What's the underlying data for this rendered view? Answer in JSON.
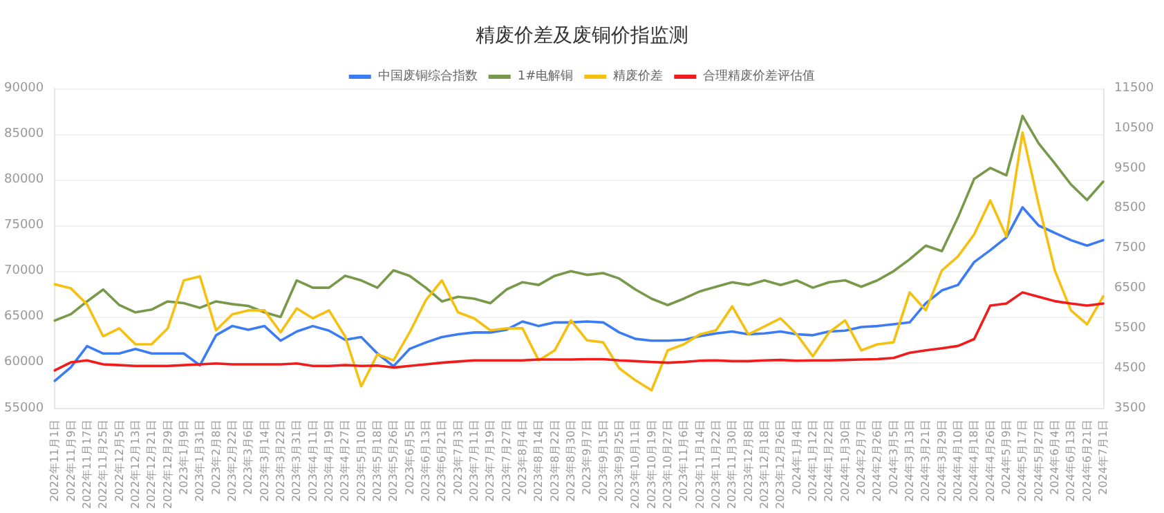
{
  "chart_data": {
    "type": "line",
    "title": "精废价差及废铜价指监测",
    "categories": [
      "2022年11月1日",
      "2022年11月9日",
      "2022年11月17日",
      "2022年11月25日",
      "2022年12月5日",
      "2022年12月13日",
      "2022年12月21日",
      "2022年12月29日",
      "2023年1月9日",
      "2023年1月31日",
      "2023年2月8日",
      "2023年2月22日",
      "2023年3月6日",
      "2023年3月14日",
      "2023年3月22日",
      "2023年3月31日",
      "2023年4月11日",
      "2023年4月19日",
      "2023年4月27日",
      "2023年5月10日",
      "2023年5月18日",
      "2023年5月26日",
      "2023年6月5日",
      "2023年6月13日",
      "2023年6月21日",
      "2023年7月3日",
      "2023年7月11日",
      "2023年7月19日",
      "2023年7月27日",
      "2023年8月4日",
      "2023年8月14日",
      "2023年8月22日",
      "2023年8月30日",
      "2023年9月7日",
      "2023年9月15日",
      "2023年9月25日",
      "2023年10月11日",
      "2023年10月19日",
      "2023年10月27日",
      "2023年11月6日",
      "2023年11月14日",
      "2023年11月22日",
      "2023年11月30日",
      "2023年12月8日",
      "2023年12月18日",
      "2023年12月26日",
      "2024年1月4日",
      "2024年1月12日",
      "2024年1月22日",
      "2024年1月30日",
      "2024年2月7日",
      "2024年2月26日",
      "2024年3月5日",
      "2024年3月13日",
      "2024年3月21日",
      "2024年3月29日",
      "2024年4月10日",
      "2024年4月18日",
      "2024年4月26日",
      "2024年5月9日",
      "2024年5月17日",
      "2024年5月27日",
      "2024年6月4日",
      "2024年6月13日",
      "2024年6月21日",
      "2024年7月1日"
    ],
    "series": [
      {
        "name": "中国废铜综合指数",
        "color": "#3b7cf4",
        "values": [
          58000,
          59500,
          61800,
          61000,
          61000,
          61500,
          61000,
          61000,
          61000,
          59700,
          63000,
          64000,
          63600,
          64000,
          62400,
          63400,
          64000,
          63500,
          62500,
          62800,
          61000,
          59600,
          61500,
          62200,
          62800,
          63100,
          63300,
          63300,
          63600,
          64500,
          64000,
          64400,
          64400,
          64500,
          64400,
          63300,
          62600,
          62400,
          62400,
          62500,
          62900,
          63200,
          63400,
          63100,
          63200,
          63400,
          63100,
          63000,
          63400,
          63500,
          63900,
          64000,
          64200,
          64400,
          66500,
          67900,
          68500,
          71000,
          72300,
          73700,
          77000,
          75000,
          74200,
          73400,
          72800,
          73400
        ]
      },
      {
        "name": "1#电解铜",
        "color": "#78994a",
        "values": [
          64600,
          65300,
          66700,
          68000,
          66300,
          65500,
          65800,
          66700,
          66500,
          66000,
          66700,
          66400,
          66200,
          65500,
          65000,
          69000,
          68200,
          68200,
          69500,
          69000,
          68200,
          70100,
          69500,
          68200,
          66700,
          67200,
          67000,
          66500,
          68000,
          68800,
          68500,
          69500,
          70000,
          69600,
          69800,
          69200,
          68000,
          67000,
          66300,
          67000,
          67800,
          68300,
          68800,
          68500,
          69000,
          68500,
          69000,
          68200,
          68800,
          69000,
          68300,
          69000,
          70000,
          71300,
          72800,
          72200,
          75900,
          80100,
          81300,
          80500,
          87000,
          84000,
          81800,
          79500,
          77800,
          79800
        ]
      },
      {
        "name": "精废价差",
        "color": "#f5c00f",
        "axis": "y2",
        "values": [
          6600,
          6500,
          6100,
          5300,
          5500,
          5100,
          5100,
          5500,
          6700,
          6800,
          5450,
          5850,
          5950,
          5950,
          5400,
          6000,
          5750,
          5950,
          5300,
          4050,
          4850,
          4700,
          5400,
          6200,
          6700,
          5900,
          5750,
          5450,
          5500,
          5500,
          4700,
          4950,
          5700,
          5200,
          5150,
          4500,
          4200,
          3950,
          4950,
          5100,
          5350,
          5450,
          6050,
          5350,
          5550,
          5750,
          5350,
          4800,
          5400,
          5700,
          4950,
          5100,
          5150,
          6400,
          5950,
          6950,
          7300,
          7850,
          8700,
          7800,
          10400,
          8600,
          6950,
          5950,
          5600,
          6300
        ]
      },
      {
        "name": "合理精废价差评估值",
        "color": "#f01c1c",
        "axis": "y2",
        "values": [
          4450,
          4650,
          4700,
          4600,
          4580,
          4560,
          4560,
          4560,
          4580,
          4600,
          4620,
          4600,
          4600,
          4600,
          4600,
          4620,
          4560,
          4560,
          4580,
          4560,
          4570,
          4520,
          4560,
          4600,
          4640,
          4670,
          4700,
          4700,
          4700,
          4700,
          4720,
          4720,
          4720,
          4730,
          4730,
          4700,
          4680,
          4660,
          4640,
          4660,
          4690,
          4700,
          4680,
          4680,
          4700,
          4710,
          4690,
          4700,
          4700,
          4710,
          4720,
          4730,
          4760,
          4890,
          4950,
          5000,
          5060,
          5230,
          6070,
          6120,
          6400,
          6290,
          6180,
          6120,
          6070,
          6120
        ]
      }
    ],
    "ylim": [
      55000,
      90000
    ],
    "yticks": [
      55000,
      60000,
      65000,
      70000,
      75000,
      80000,
      85000,
      90000
    ],
    "y2lim": [
      3500,
      11500
    ],
    "y2ticks": [
      3500,
      4500,
      5500,
      6500,
      7500,
      8500,
      9500,
      10500,
      11500
    ],
    "grid": "y",
    "legend": "top",
    "marker": "none",
    "line_style": "solid"
  }
}
